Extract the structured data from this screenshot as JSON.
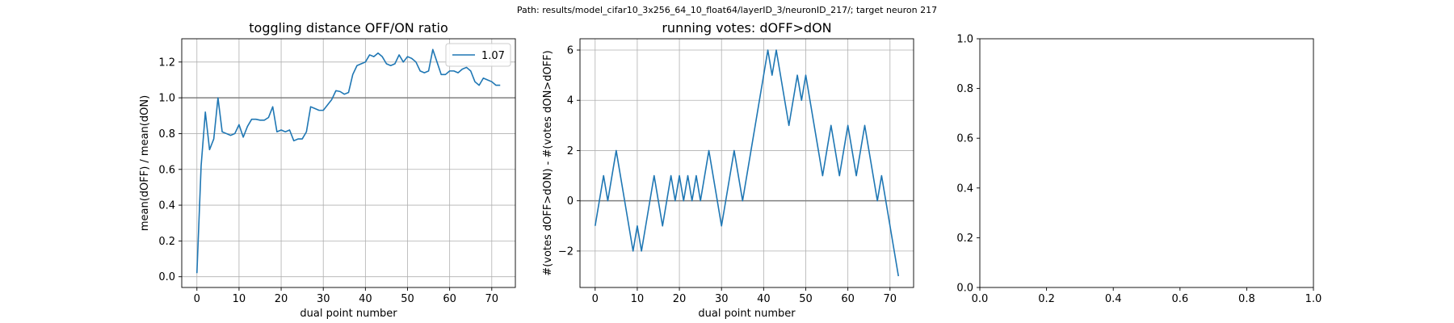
{
  "figure": {
    "suptitle": "Path: results/model_cifar10_3x256_64_10_float64/layerID_3/neuronID_217/; target neuron 217"
  },
  "colors": {
    "line": "#1f77b4",
    "hline": "#808080",
    "grid": "#b0b0b0",
    "axes": "#000000"
  },
  "chart_data": [
    {
      "type": "line",
      "title": "toggling distance OFF/ON ratio",
      "xlabel": "dual point number",
      "ylabel": "mean(dOFF) / mean(dON)",
      "xlim": [
        -3.6,
        75.6
      ],
      "ylim": [
        -0.06,
        1.33
      ],
      "xticks": [
        0,
        10,
        20,
        30,
        40,
        50,
        60,
        70
      ],
      "yticks": [
        0.0,
        0.2,
        0.4,
        0.6,
        0.8,
        1.0,
        1.2
      ],
      "ytick_labels": [
        "0.0",
        "0.2",
        "0.4",
        "0.6",
        "0.8",
        "1.0",
        "1.2"
      ],
      "grid": true,
      "hline": 1.0,
      "legend": {
        "position": "top-right",
        "entries": [
          "1.07"
        ]
      },
      "series": [
        {
          "name": "1.07",
          "x": [
            0,
            1,
            2,
            3,
            4,
            5,
            6,
            7,
            8,
            9,
            10,
            11,
            12,
            13,
            14,
            15,
            16,
            17,
            18,
            19,
            20,
            21,
            22,
            23,
            24,
            25,
            26,
            27,
            28,
            29,
            30,
            31,
            32,
            33,
            34,
            35,
            36,
            37,
            38,
            39,
            40,
            41,
            42,
            43,
            44,
            45,
            46,
            47,
            48,
            49,
            50,
            51,
            52,
            53,
            54,
            55,
            56,
            57,
            58,
            59,
            60,
            61,
            62,
            63,
            64,
            65,
            66,
            67,
            68,
            69,
            70,
            71,
            72
          ],
          "y": [
            0.02,
            0.62,
            0.92,
            0.71,
            0.77,
            1.0,
            0.81,
            0.8,
            0.79,
            0.8,
            0.85,
            0.78,
            0.84,
            0.88,
            0.88,
            0.875,
            0.875,
            0.89,
            0.95,
            0.81,
            0.82,
            0.81,
            0.82,
            0.76,
            0.77,
            0.77,
            0.81,
            0.95,
            0.94,
            0.93,
            0.93,
            0.96,
            0.99,
            1.04,
            1.035,
            1.02,
            1.03,
            1.13,
            1.18,
            1.19,
            1.2,
            1.24,
            1.23,
            1.25,
            1.23,
            1.19,
            1.18,
            1.19,
            1.24,
            1.2,
            1.23,
            1.22,
            1.2,
            1.15,
            1.14,
            1.15,
            1.27,
            1.2,
            1.13,
            1.13,
            1.15,
            1.15,
            1.14,
            1.16,
            1.17,
            1.15,
            1.09,
            1.07,
            1.11,
            1.1,
            1.09,
            1.07,
            1.07
          ]
        }
      ]
    },
    {
      "type": "line",
      "title": "running votes: dOFF>dON",
      "xlabel": "dual point number",
      "ylabel": "#(votes dOFF>dON) - #(votes dON>dOFF)",
      "xlim": [
        -3.6,
        75.6
      ],
      "ylim": [
        -3.45,
        6.45
      ],
      "xticks": [
        0,
        10,
        20,
        30,
        40,
        50,
        60,
        70
      ],
      "yticks": [
        -2,
        0,
        2,
        4,
        6
      ],
      "ytick_labels": [
        "−2",
        "0",
        "2",
        "4",
        "6"
      ],
      "grid": true,
      "hline": 0,
      "series": [
        {
          "name": "",
          "x": [
            0,
            1,
            2,
            3,
            4,
            5,
            6,
            7,
            8,
            9,
            10,
            11,
            12,
            13,
            14,
            15,
            16,
            17,
            18,
            19,
            20,
            21,
            22,
            23,
            24,
            25,
            26,
            27,
            28,
            29,
            30,
            31,
            32,
            33,
            34,
            35,
            36,
            37,
            38,
            39,
            40,
            41,
            42,
            43,
            44,
            45,
            46,
            47,
            48,
            49,
            50,
            51,
            52,
            53,
            54,
            55,
            56,
            57,
            58,
            59,
            60,
            61,
            62,
            63,
            64,
            65,
            66,
            67,
            68,
            69,
            70,
            71,
            72
          ],
          "y": [
            -1,
            0,
            1,
            0,
            1,
            2,
            1,
            0,
            -1,
            -2,
            -1,
            -2,
            -1,
            0,
            1,
            0,
            -1,
            0,
            1,
            0,
            1,
            0,
            1,
            0,
            1,
            0,
            1,
            2,
            1,
            0,
            -1,
            0,
            1,
            2,
            1,
            0,
            1,
            2,
            3,
            4,
            5,
            6,
            5,
            6,
            5,
            4,
            3,
            4,
            5,
            4,
            5,
            4,
            3,
            2,
            1,
            2,
            3,
            2,
            1,
            2,
            3,
            2,
            1,
            2,
            3,
            2,
            1,
            0,
            1,
            0,
            -1,
            -2,
            -3
          ]
        }
      ]
    },
    {
      "type": "line",
      "title": "",
      "xlabel": "",
      "ylabel": "",
      "xlim": [
        0,
        1
      ],
      "ylim": [
        0,
        1
      ],
      "xticks": [
        0.0,
        0.2,
        0.4,
        0.6,
        0.8,
        1.0
      ],
      "yticks": [
        0.0,
        0.2,
        0.4,
        0.6,
        0.8,
        1.0
      ],
      "xtick_labels": [
        "0.0",
        "0.2",
        "0.4",
        "0.6",
        "0.8",
        "1.0"
      ],
      "ytick_labels": [
        "0.0",
        "0.2",
        "0.4",
        "0.6",
        "0.8",
        "1.0"
      ],
      "grid": false,
      "series": []
    }
  ]
}
